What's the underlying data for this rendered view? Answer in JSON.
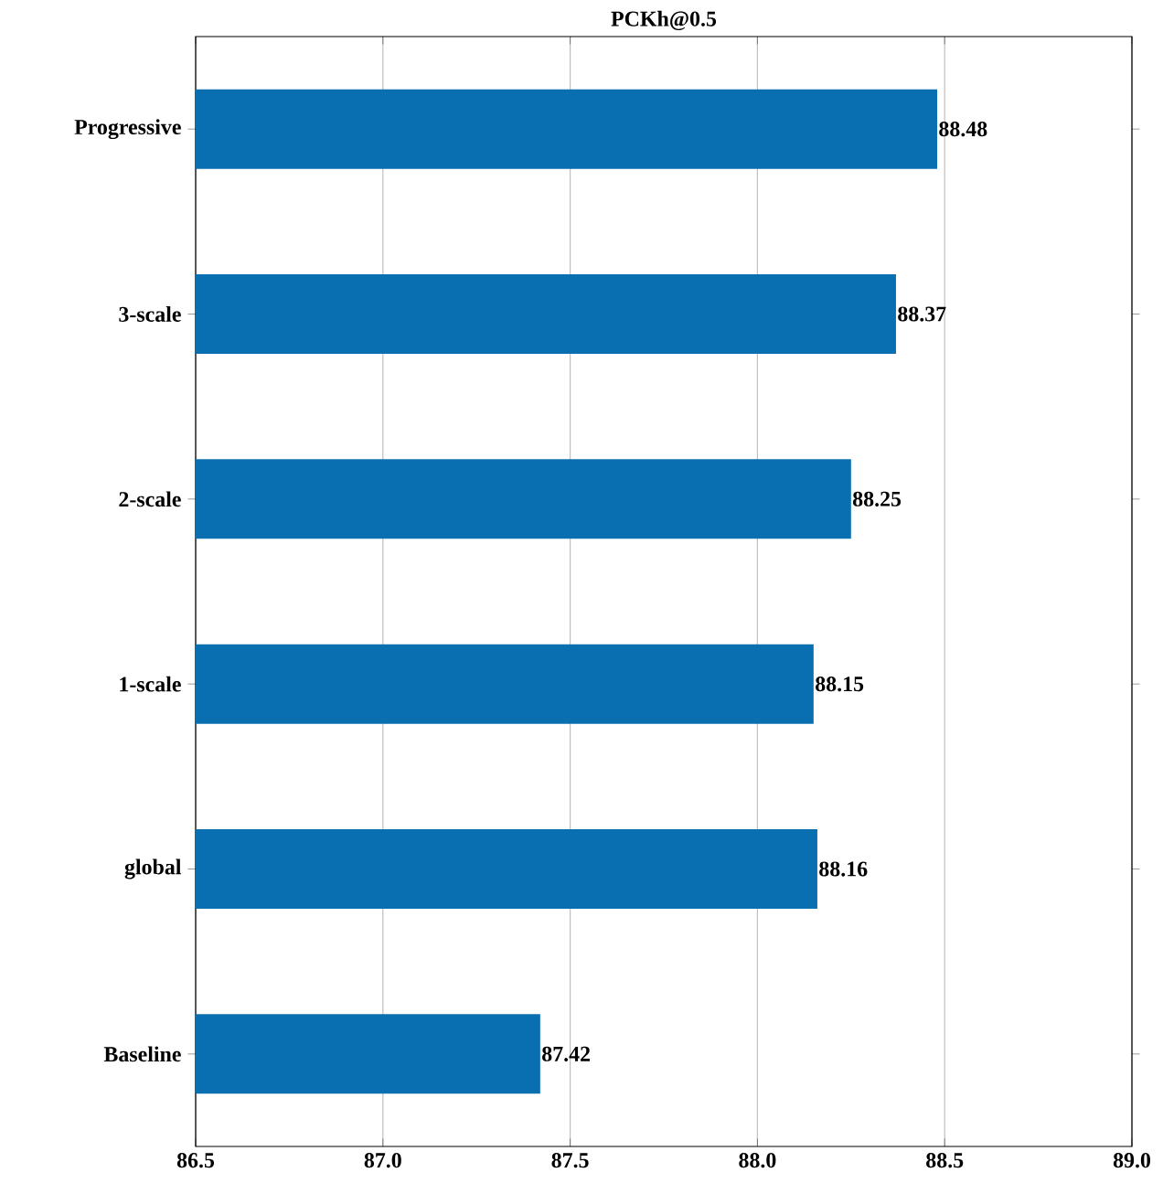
{
  "chart_data": {
    "type": "bar",
    "orientation": "horizontal",
    "title": "PCKh@0.5",
    "categories": [
      "Progressive",
      "3-scale",
      "2-scale",
      "1-scale",
      "global",
      "Baseline"
    ],
    "values": [
      88.48,
      88.37,
      88.25,
      88.15,
      88.16,
      87.42
    ],
    "color": "#0a6fb0",
    "xlim": [
      86.5,
      89.0
    ],
    "xticks": [
      86.5,
      {
        "value": 87,
        "label": "87.0"
      },
      87.5,
      {
        "value": 88,
        "label": "88.0"
      },
      88.5,
      {
        "value": 89,
        "label": "89.0"
      }
    ],
    "grid": "x",
    "data_labels": true
  }
}
